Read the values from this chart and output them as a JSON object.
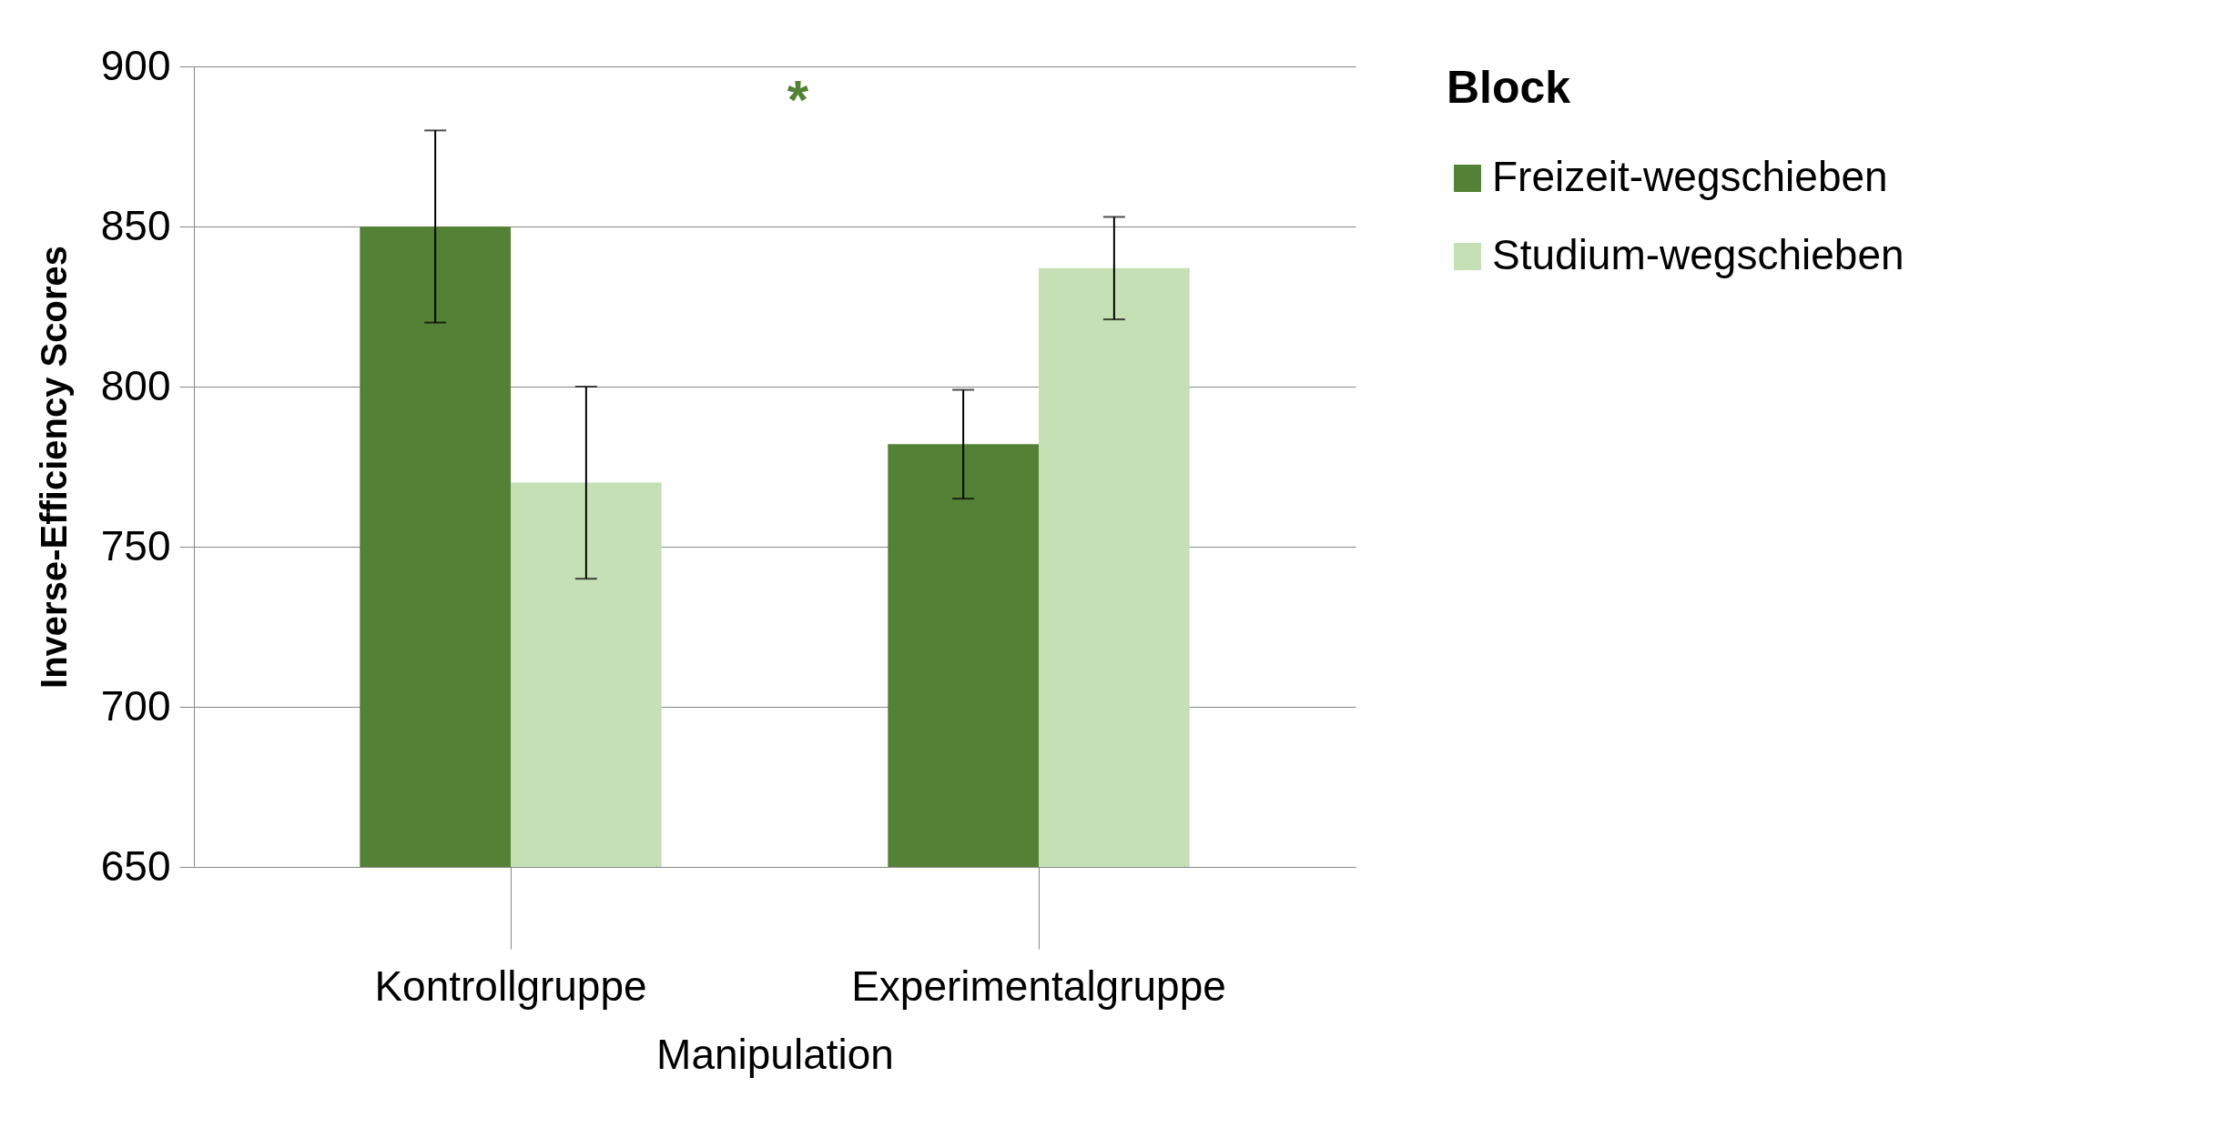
{
  "chart_data": {
    "type": "bar",
    "xlabel": "Manipulation",
    "ylabel": "Inverse-Efficiency Scores",
    "legend_title": "Block",
    "categories": [
      "Kontrollgruppe",
      "Experimentalgruppe"
    ],
    "series": [
      {
        "name": "Freizeit-wegschieben",
        "color": "#538135",
        "values": [
          850,
          782
        ],
        "errors": [
          30,
          17
        ]
      },
      {
        "name": "Studium-wegschieben",
        "color": "#c5e0b4",
        "values": [
          770,
          837
        ],
        "errors": [
          30,
          16
        ]
      }
    ],
    "ylim": [
      650,
      900
    ],
    "yticks": [
      650,
      700,
      750,
      800,
      850,
      900
    ],
    "grid": "y",
    "legend": "right",
    "annotations": [
      "*"
    ]
  }
}
